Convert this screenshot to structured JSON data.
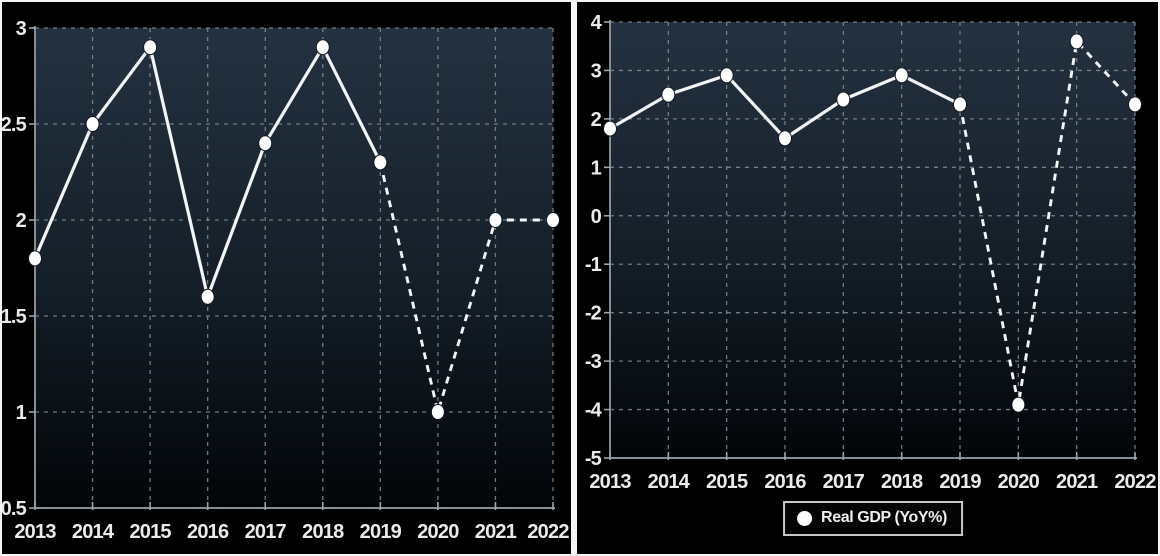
{
  "colors": {
    "background": "#000000",
    "frame": "#f5f5f5",
    "plot_gradient_top": "#243140",
    "plot_gradient_mid": "#141e27",
    "plot_gradient_bottom": "#020508",
    "grid": "#818c95",
    "axis": "#9aa3aa",
    "line": "#f2f4f5",
    "marker": "#ffffff",
    "tick_label": "#e9ebec",
    "legend_border": "#c3c9cd"
  },
  "legend": {
    "marker_icon": "circle-icon",
    "label": "Real GDP (YoY%)"
  },
  "chart_data": [
    {
      "type": "line",
      "title": "",
      "xlabel": "",
      "ylabel": "",
      "x": [
        "2013",
        "2014",
        "2015",
        "2016",
        "2017",
        "2018",
        "2019",
        "2020",
        "2021",
        "2022"
      ],
      "series": [
        {
          "name": "Real GDP (YoY%)",
          "values": [
            1.8,
            2.5,
            2.9,
            1.6,
            2.4,
            2.9,
            2.3,
            1.0,
            2.0,
            2.0
          ],
          "solid_through_index": 6,
          "style_after": "dashed"
        }
      ],
      "ylim": [
        0.5,
        3
      ],
      "yticks": [
        0.5,
        1,
        1.5,
        2,
        2.5,
        3
      ],
      "ytick_labels": [
        "0.5",
        "1",
        "1.5",
        "2",
        "2.5",
        "3"
      ],
      "grid": true,
      "legend": null
    },
    {
      "type": "line",
      "title": "",
      "xlabel": "",
      "ylabel": "",
      "x": [
        "2013",
        "2014",
        "2015",
        "2016",
        "2017",
        "2018",
        "2019",
        "2020",
        "2021",
        "2022"
      ],
      "series": [
        {
          "name": "Real GDP (YoY%)",
          "values": [
            1.8,
            2.5,
            2.9,
            1.6,
            2.4,
            2.9,
            2.3,
            -3.9,
            3.6,
            2.3
          ],
          "solid_through_index": 6,
          "style_after": "dashed"
        }
      ],
      "ylim": [
        -5,
        4
      ],
      "yticks": [
        -5,
        -4,
        -3,
        -2,
        -1,
        0,
        1,
        2,
        3,
        4
      ],
      "ytick_labels": [
        "-5",
        "-4",
        "-3",
        "-2",
        "-1",
        "0",
        "1",
        "2",
        "3",
        "4"
      ],
      "grid": true,
      "legend": {
        "label": "Real GDP (YoY%)",
        "position": "bottom-center"
      }
    }
  ]
}
